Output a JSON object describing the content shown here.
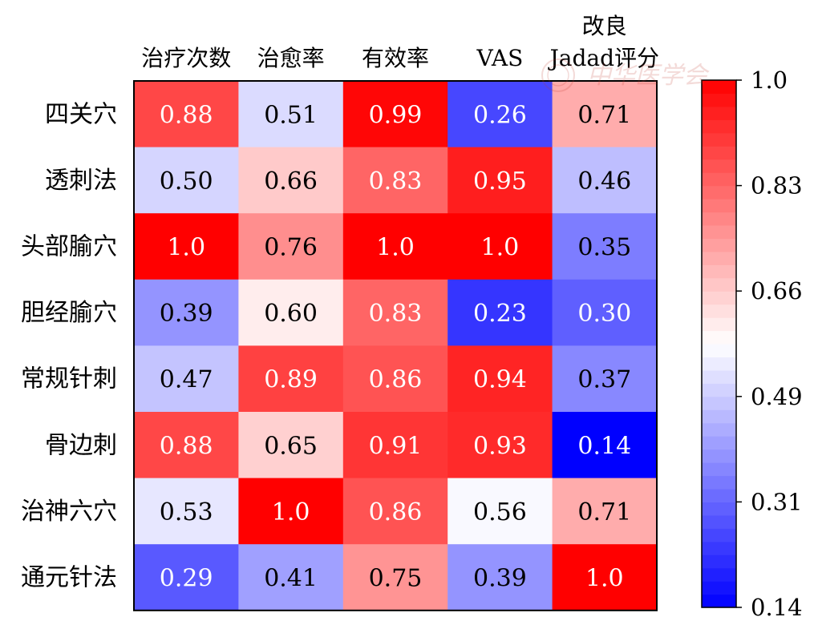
{
  "chart_data": {
    "type": "heatmap",
    "columns": [
      "治疗次数",
      "治愈率",
      "有效率",
      "VAS",
      "改良\nJadad评分"
    ],
    "rows": [
      "四关穴",
      "透刺法",
      "头部腧穴",
      "胆经腧穴",
      "常规针刺",
      "骨边刺",
      "治神六穴",
      "通元针法"
    ],
    "values": [
      [
        0.88,
        0.51,
        0.99,
        0.26,
        0.71
      ],
      [
        0.5,
        0.66,
        0.83,
        0.95,
        0.46
      ],
      [
        1.0,
        0.76,
        1.0,
        1.0,
        0.35
      ],
      [
        0.39,
        0.6,
        0.83,
        0.23,
        0.3
      ],
      [
        0.47,
        0.89,
        0.86,
        0.94,
        0.37
      ],
      [
        0.88,
        0.65,
        0.91,
        0.93,
        0.14
      ],
      [
        0.53,
        1.0,
        0.86,
        0.56,
        0.71
      ],
      [
        0.29,
        0.41,
        0.75,
        0.39,
        1.0
      ]
    ],
    "cell_labels": [
      [
        "0.88",
        "0.51",
        "0.99",
        "0.26",
        "0.71"
      ],
      [
        "0.50",
        "0.66",
        "0.83",
        "0.95",
        "0.46"
      ],
      [
        "1.0",
        "0.76",
        "1.0",
        "1.0",
        "0.35"
      ],
      [
        "0.39",
        "0.60",
        "0.83",
        "0.23",
        "0.30"
      ],
      [
        "0.47",
        "0.89",
        "0.86",
        "0.94",
        "0.37"
      ],
      [
        "0.88",
        "0.65",
        "0.91",
        "0.93",
        "0.14"
      ],
      [
        "0.53",
        "1.0",
        "0.86",
        "0.56",
        "0.71"
      ],
      [
        "0.29",
        "0.41",
        "0.75",
        "0.39",
        "1.0"
      ]
    ],
    "colormap": "bwr",
    "vmin": 0.14,
    "vmax": 1.0,
    "colorbar_ticks": [
      "1.0",
      "0.83",
      "0.66",
      "0.49",
      "0.31",
      "0.14"
    ],
    "colorbar_levels": 40,
    "colors": {
      "low": "#0000ff",
      "mid": "#ffffff",
      "high": "#ff0000"
    }
  },
  "watermark": {
    "text": "中华医学会",
    "color": "#c0392b"
  }
}
